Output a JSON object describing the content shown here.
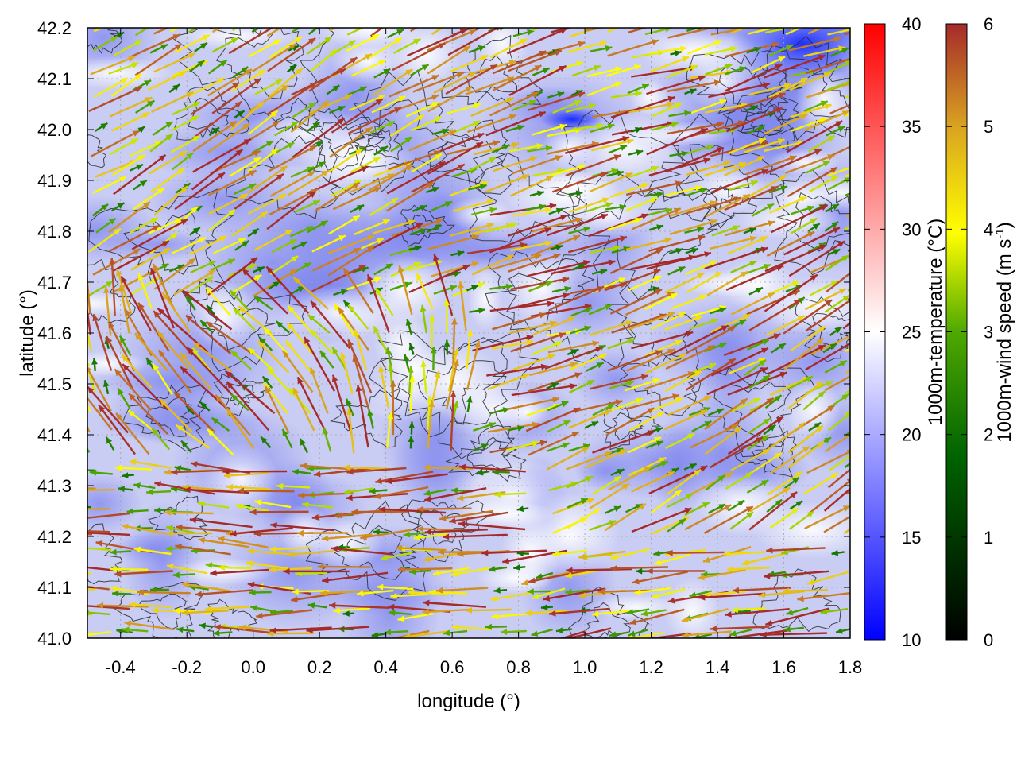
{
  "chart_data": {
    "type": "vector-field",
    "title": "",
    "xlabel": "longitude (°)",
    "ylabel": "latitude (°)",
    "xlim": [
      -0.5,
      1.8
    ],
    "ylim": [
      41.0,
      42.2
    ],
    "xticks": [
      "-0.4",
      "-0.2",
      "0.0",
      "0.2",
      "0.4",
      "0.6",
      "0.8",
      "1.0",
      "1.2",
      "1.4",
      "1.6",
      "1.8"
    ],
    "yticks": [
      "41.0",
      "41.1",
      "41.2",
      "41.3",
      "41.4",
      "41.5",
      "41.6",
      "41.7",
      "41.8",
      "41.9",
      "42.0",
      "42.1",
      "42.2"
    ],
    "grid": true,
    "background_field": "1000m-temperature",
    "vectors": "1000m-wind speed",
    "contours": "terrain",
    "colorbars": [
      {
        "label": "1000m-temperature (°C)",
        "range": [
          10,
          40
        ],
        "ticks": [
          "10",
          "15",
          "20",
          "25",
          "30",
          "35",
          "40"
        ],
        "colors": [
          "#0000ff",
          "#ffffff",
          "#ff0000"
        ]
      },
      {
        "label_main": "1000m-wind speed (m s",
        "label_sup": "-1",
        "label_end": ")",
        "range": [
          0,
          6
        ],
        "ticks": [
          "0",
          "1",
          "2",
          "3",
          "4",
          "5",
          "6"
        ],
        "colors": [
          "#000000",
          "#006400",
          "#4fa800",
          "#ffff00",
          "#daa520",
          "#cd853f",
          "#a52a2a"
        ]
      }
    ]
  }
}
